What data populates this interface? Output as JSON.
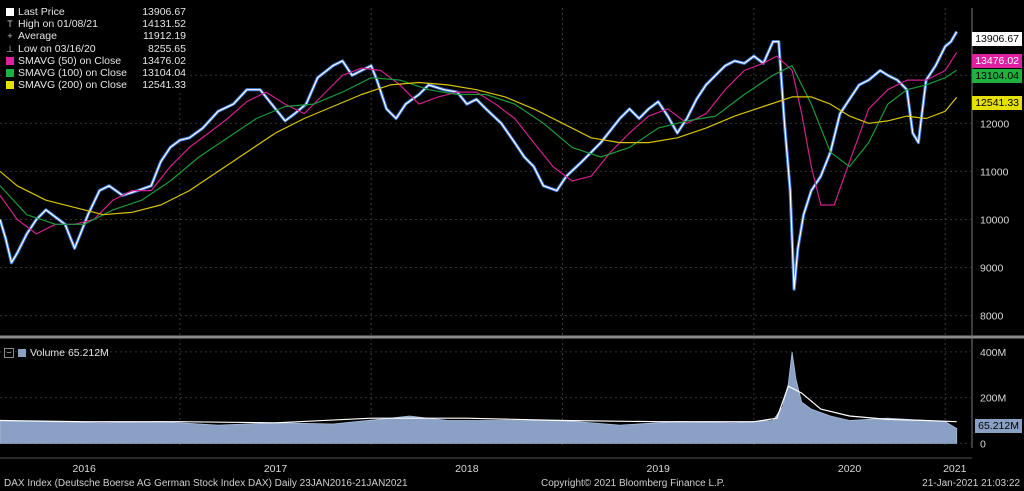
{
  "legend": {
    "items": [
      {
        "symbol": "square",
        "color": "#ffffff",
        "label": "Last Price",
        "value": "13906.67"
      },
      {
        "symbol": "T",
        "label": "High on 01/08/21",
        "value": "14131.52"
      },
      {
        "symbol": "+",
        "label": "Average",
        "value": "11912.19"
      },
      {
        "symbol": "⊥",
        "label": "Low on 03/16/20",
        "value": "8255.65"
      },
      {
        "symbol": "square",
        "color": "#e020a0",
        "label": "SMAVG (50)  on Close",
        "value": "13476.02"
      },
      {
        "symbol": "square",
        "color": "#20b040",
        "label": "SMAVG (100)  on Close",
        "value": "13104.04"
      },
      {
        "symbol": "square",
        "color": "#e6e000",
        "label": "SMAVG (200)  on Close",
        "value": "12541.33"
      }
    ]
  },
  "volume_legend": {
    "label": "Volume 65.212M"
  },
  "price_tags": [
    {
      "text": "13906.67",
      "bg": "#ffffff",
      "fg": "#000000",
      "value": 13906.67
    },
    {
      "text": "13476.02",
      "bg": "#e020a0",
      "fg": "#ffffff",
      "value": 13476.02
    },
    {
      "text": "13104.04",
      "bg": "#20b040",
      "fg": "#000000",
      "value": 13104.04
    },
    {
      "text": "12541.33",
      "bg": "#e6e000",
      "fg": "#000000",
      "value": 12541.33
    }
  ],
  "volume_tag": {
    "text": "65.212M",
    "value": 65.212
  },
  "footer": {
    "left": "DAX Index (Deutsche Boerse AG German Stock Index DAX)  Daily 23JAN2016-21JAN2021",
    "center": "Copyright© 2021 Bloomberg Finance L.P.",
    "right": "21-Jan-2021 21:03:22"
  },
  "chart_data": [
    {
      "type": "line",
      "ylim": [
        7700,
        14400
      ],
      "yticks": [
        8000,
        9000,
        10000,
        11000,
        12000,
        13000
      ],
      "grid": true,
      "x_labels": [
        "2016",
        "2017",
        "2018",
        "2019",
        "2020",
        "2021"
      ],
      "x_label_dates": [
        2016.5,
        2017.5,
        2018.5,
        2019.5,
        2020.5,
        2021.05
      ],
      "xlim": [
        2016.06,
        2021.14
      ],
      "series": [
        {
          "name": "Last Price",
          "color": "#ffffff",
          "x": [
            2016.06,
            2016.09,
            2016.12,
            2016.15,
            2016.2,
            2016.25,
            2016.3,
            2016.35,
            2016.4,
            2016.45,
            2016.48,
            2016.52,
            2016.58,
            2016.63,
            2016.7,
            2016.78,
            2016.85,
            2016.9,
            2016.95,
            2017.0,
            2017.05,
            2017.12,
            2017.2,
            2017.28,
            2017.35,
            2017.42,
            2017.5,
            2017.55,
            2017.6,
            2017.66,
            2017.72,
            2017.8,
            2017.85,
            2017.9,
            2017.95,
            2018.0,
            2018.03,
            2018.08,
            2018.13,
            2018.18,
            2018.25,
            2018.3,
            2018.38,
            2018.45,
            2018.5,
            2018.55,
            2018.6,
            2018.68,
            2018.75,
            2018.8,
            2018.85,
            2018.9,
            2018.97,
            2019.02,
            2019.1,
            2019.2,
            2019.3,
            2019.35,
            2019.4,
            2019.45,
            2019.5,
            2019.55,
            2019.6,
            2019.65,
            2019.7,
            2019.75,
            2019.8,
            2019.85,
            2019.9,
            2019.95,
            2020.0,
            2020.05,
            2020.1,
            2020.13,
            2020.16,
            2020.19,
            2020.21,
            2020.23,
            2020.26,
            2020.3,
            2020.35,
            2020.4,
            2020.45,
            2020.5,
            2020.55,
            2020.6,
            2020.66,
            2020.7,
            2020.75,
            2020.8,
            2020.83,
            2020.86,
            2020.9,
            2020.95,
            2021.0,
            2021.03,
            2021.06
          ],
          "values": [
            10000,
            9600,
            9100,
            9300,
            9700,
            10000,
            10200,
            10050,
            9900,
            9400,
            9700,
            10100,
            10600,
            10700,
            10500,
            10600,
            10700,
            11200,
            11500,
            11650,
            11700,
            11900,
            12250,
            12400,
            12700,
            12700,
            12300,
            12050,
            12200,
            12400,
            12950,
            13200,
            13300,
            13000,
            13100,
            13200,
            12900,
            12300,
            12100,
            12400,
            12600,
            12800,
            12700,
            12650,
            12400,
            12500,
            12300,
            12000,
            11600,
            11300,
            11100,
            10700,
            10600,
            10900,
            11200,
            11600,
            12100,
            12300,
            12100,
            12300,
            12450,
            12150,
            11800,
            12100,
            12500,
            12800,
            13000,
            13200,
            13300,
            13250,
            13400,
            13250,
            13700,
            13700,
            12000,
            10600,
            8550,
            9400,
            10100,
            10600,
            10900,
            11400,
            12200,
            12500,
            12800,
            12900,
            13100,
            13000,
            12900,
            12700,
            11800,
            11600,
            12900,
            13200,
            13600,
            13700,
            13907
          ]
        },
        {
          "name": "SMAVG (50)",
          "color": "#d0208f",
          "x": [
            2016.06,
            2016.15,
            2016.25,
            2016.35,
            2016.45,
            2016.55,
            2016.65,
            2016.75,
            2016.85,
            2016.95,
            2017.05,
            2017.15,
            2017.25,
            2017.35,
            2017.45,
            2017.55,
            2017.65,
            2017.75,
            2017.85,
            2017.95,
            2018.05,
            2018.15,
            2018.25,
            2018.35,
            2018.45,
            2018.55,
            2018.65,
            2018.75,
            2018.85,
            2018.95,
            2019.05,
            2019.15,
            2019.25,
            2019.35,
            2019.45,
            2019.55,
            2019.65,
            2019.75,
            2019.85,
            2019.95,
            2020.05,
            2020.12,
            2020.2,
            2020.25,
            2020.3,
            2020.35,
            2020.42,
            2020.5,
            2020.6,
            2020.7,
            2020.8,
            2020.9,
            2021.0,
            2021.06
          ],
          "values": [
            10500,
            10000,
            9700,
            9900,
            9900,
            10000,
            10400,
            10600,
            10600,
            11100,
            11500,
            11800,
            12100,
            12450,
            12650,
            12400,
            12200,
            12600,
            13000,
            13150,
            13100,
            12800,
            12400,
            12550,
            12650,
            12650,
            12400,
            12100,
            11600,
            11100,
            10800,
            10900,
            11400,
            11800,
            12150,
            12300,
            12000,
            12200,
            12700,
            13100,
            13250,
            13400,
            13100,
            12200,
            11100,
            10300,
            10300,
            11200,
            12300,
            12700,
            12900,
            12900,
            13100,
            13476
          ]
        },
        {
          "name": "SMAVG (100)",
          "color": "#1a9a3a",
          "x": [
            2016.06,
            2016.2,
            2016.35,
            2016.5,
            2016.65,
            2016.8,
            2016.95,
            2017.1,
            2017.25,
            2017.4,
            2017.55,
            2017.7,
            2017.85,
            2018.0,
            2018.15,
            2018.3,
            2018.45,
            2018.6,
            2018.75,
            2018.9,
            2019.05,
            2019.2,
            2019.35,
            2019.5,
            2019.65,
            2019.8,
            2019.95,
            2020.1,
            2020.2,
            2020.3,
            2020.4,
            2020.5,
            2020.6,
            2020.7,
            2020.8,
            2020.9,
            2021.0,
            2021.06
          ],
          "values": [
            10700,
            10100,
            9900,
            9900,
            10200,
            10400,
            10800,
            11300,
            11700,
            12100,
            12350,
            12400,
            12650,
            12950,
            12900,
            12700,
            12600,
            12600,
            12400,
            12000,
            11500,
            11300,
            11500,
            11900,
            12050,
            12150,
            12600,
            13000,
            13200,
            12400,
            11400,
            11100,
            11600,
            12400,
            12700,
            12800,
            12950,
            13104
          ]
        },
        {
          "name": "SMAVG (200)",
          "color": "#d8c400",
          "x": [
            2016.06,
            2016.15,
            2016.3,
            2016.45,
            2016.6,
            2016.75,
            2016.9,
            2017.05,
            2017.2,
            2017.35,
            2017.5,
            2017.65,
            2017.8,
            2017.95,
            2018.1,
            2018.25,
            2018.4,
            2018.55,
            2018.7,
            2018.85,
            2019.0,
            2019.15,
            2019.3,
            2019.45,
            2019.6,
            2019.75,
            2019.9,
            2020.05,
            2020.2,
            2020.3,
            2020.4,
            2020.5,
            2020.6,
            2020.7,
            2020.8,
            2020.9,
            2021.0,
            2021.06
          ],
          "values": [
            11000,
            10700,
            10400,
            10250,
            10100,
            10150,
            10300,
            10600,
            11000,
            11400,
            11800,
            12100,
            12350,
            12600,
            12800,
            12850,
            12800,
            12700,
            12550,
            12300,
            12000,
            11700,
            11600,
            11600,
            11700,
            11900,
            12150,
            12350,
            12550,
            12550,
            12400,
            12150,
            12000,
            12050,
            12150,
            12100,
            12250,
            12541
          ]
        }
      ]
    },
    {
      "type": "area",
      "ylim": [
        -20,
        430
      ],
      "yticks": [
        0,
        200,
        400
      ],
      "ytick_labels": [
        "0",
        "200M",
        "400M"
      ],
      "xlim": [
        2016.06,
        2021.14
      ],
      "series": [
        {
          "name": "Volume",
          "color": "#8aa0c4",
          "x": [
            2016.06,
            2016.3,
            2016.6,
            2016.9,
            2017.2,
            2017.5,
            2017.8,
            2018.1,
            2018.2,
            2018.4,
            2018.7,
            2019.0,
            2019.3,
            2019.6,
            2019.9,
            2020.1,
            2020.15,
            2020.18,
            2020.2,
            2020.22,
            2020.25,
            2020.3,
            2020.4,
            2020.5,
            2020.7,
            2020.9,
            2021.0,
            2021.06
          ],
          "values": [
            100,
            95,
            90,
            95,
            80,
            90,
            85,
            110,
            120,
            100,
            100,
            100,
            80,
            95,
            90,
            100,
            160,
            260,
            400,
            280,
            180,
            150,
            120,
            100,
            110,
            100,
            95,
            65
          ]
        },
        {
          "name": "Average",
          "color": "#ffffff",
          "x": [
            2016.06,
            2016.5,
            2017.0,
            2017.5,
            2018.0,
            2018.5,
            2019.0,
            2019.5,
            2020.0,
            2020.12,
            2020.18,
            2020.25,
            2020.35,
            2020.5,
            2020.7,
            2020.9,
            2021.06
          ],
          "values": [
            100,
            95,
            95,
            90,
            110,
            110,
            100,
            95,
            95,
            110,
            250,
            220,
            150,
            120,
            105,
            100,
            95
          ]
        }
      ]
    }
  ]
}
